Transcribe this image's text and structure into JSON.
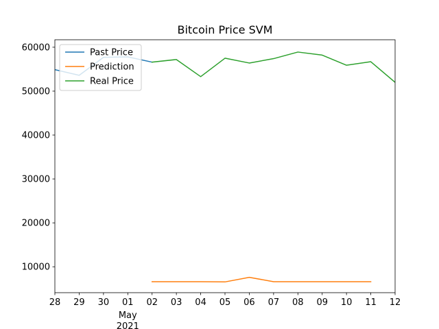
{
  "chart_data": {
    "type": "line",
    "title": "Bitcoin Price SVM",
    "xlabel": "",
    "ylabel": "",
    "x_ticks": [
      {
        "date": "2021-04-28",
        "label": "28"
      },
      {
        "date": "2021-04-29",
        "label": "29"
      },
      {
        "date": "2021-04-30",
        "label": "30"
      },
      {
        "date": "2021-05-01",
        "label": "01",
        "sub1": "May",
        "sub2": "2021"
      },
      {
        "date": "2021-05-02",
        "label": "02"
      },
      {
        "date": "2021-05-03",
        "label": "03"
      },
      {
        "date": "2021-05-04",
        "label": "04"
      },
      {
        "date": "2021-05-05",
        "label": "05"
      },
      {
        "date": "2021-05-06",
        "label": "06"
      },
      {
        "date": "2021-05-07",
        "label": "07"
      },
      {
        "date": "2021-05-08",
        "label": "08"
      },
      {
        "date": "2021-05-09",
        "label": "09"
      },
      {
        "date": "2021-05-10",
        "label": "10"
      },
      {
        "date": "2021-05-11",
        "label": "11"
      },
      {
        "date": "2021-05-12",
        "label": "12"
      }
    ],
    "xlim": [
      "2021-04-28",
      "2021-05-12"
    ],
    "y_ticks": [
      10000,
      20000,
      30000,
      40000,
      50000,
      60000
    ],
    "y_tick_labels": [
      "10000",
      "20000",
      "30000",
      "40000",
      "50000",
      "60000"
    ],
    "ylim": [
      4100,
      61700
    ],
    "grid": false,
    "legend_position": "top-left",
    "series": [
      {
        "name": "Past Price",
        "color": "#1f77b4",
        "points": [
          {
            "x": "2021-04-28",
            "y": 54900
          },
          {
            "x": "2021-04-29",
            "y": 53600
          },
          {
            "x": "2021-04-30",
            "y": 57700
          },
          {
            "x": "2021-05-01",
            "y": 57800
          },
          {
            "x": "2021-05-02",
            "y": 56600
          }
        ]
      },
      {
        "name": "Prediction",
        "color": "#ff7f0e",
        "points": [
          {
            "x": "2021-05-02",
            "y": 6600
          },
          {
            "x": "2021-05-03",
            "y": 6600
          },
          {
            "x": "2021-05-04",
            "y": 6600
          },
          {
            "x": "2021-05-05",
            "y": 6550
          },
          {
            "x": "2021-05-06",
            "y": 7600
          },
          {
            "x": "2021-05-07",
            "y": 6600
          },
          {
            "x": "2021-05-08",
            "y": 6600
          },
          {
            "x": "2021-05-09",
            "y": 6600
          },
          {
            "x": "2021-05-10",
            "y": 6600
          },
          {
            "x": "2021-05-11",
            "y": 6600
          }
        ]
      },
      {
        "name": "Real Price",
        "color": "#2ca02c",
        "points": [
          {
            "x": "2021-05-02",
            "y": 56600
          },
          {
            "x": "2021-05-03",
            "y": 57200
          },
          {
            "x": "2021-05-04",
            "y": 53300
          },
          {
            "x": "2021-05-05",
            "y": 57500
          },
          {
            "x": "2021-05-06",
            "y": 56400
          },
          {
            "x": "2021-05-07",
            "y": 57400
          },
          {
            "x": "2021-05-08",
            "y": 58900
          },
          {
            "x": "2021-05-09",
            "y": 58200
          },
          {
            "x": "2021-05-10",
            "y": 55900
          },
          {
            "x": "2021-05-11",
            "y": 56700
          },
          {
            "x": "2021-05-12",
            "y": 52000
          }
        ]
      }
    ]
  }
}
